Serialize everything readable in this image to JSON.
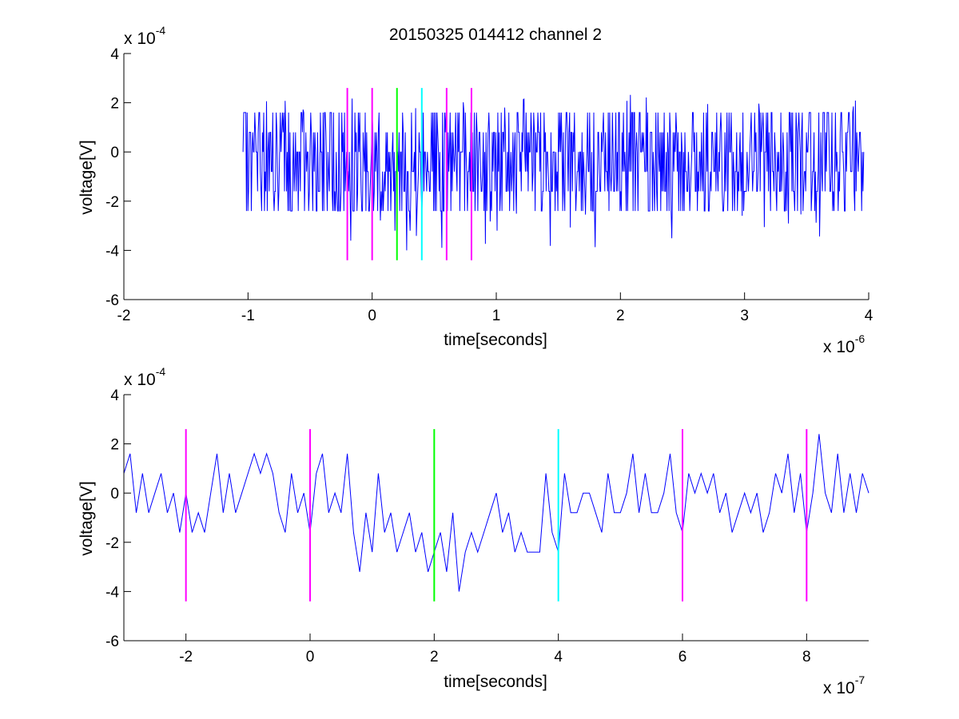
{
  "chart_data": [
    {
      "type": "line",
      "title": "20150325 014412 channel 2",
      "xlabel": "time[seconds]",
      "ylabel": "voltage[V]",
      "x_multiplier": {
        "base": "x 10",
        "exp": "-6"
      },
      "y_multiplier": {
        "base": "x 10",
        "exp": "-4"
      },
      "xlim": [
        -2,
        4
      ],
      "ylim": [
        -6,
        4
      ],
      "x_ticks": [
        -2,
        -1,
        0,
        1,
        2,
        3,
        4
      ],
      "x_tick_labels": [
        "-2",
        "-1",
        "0",
        "1",
        "2",
        "3",
        "4"
      ],
      "y_ticks": [
        -6,
        -4,
        -2,
        0,
        2,
        4
      ],
      "y_tick_labels": [
        "-6",
        "-4",
        "-2",
        "0",
        "2",
        "4"
      ],
      "grid": false,
      "series": [
        {
          "color": "#0000ff",
          "x_start": -1.04,
          "x_end": 3.96,
          "noise_levels": [
            -2.4,
            -1.6,
            -0.8,
            0,
            0.8,
            1.6
          ],
          "approx_range": [
            -4.0,
            2.4
          ]
        }
      ],
      "markers": [
        {
          "x": -0.2,
          "color": "#ff00ff",
          "y_range": [
            -4.4,
            2.6
          ]
        },
        {
          "x": 0.0,
          "color": "#ff00ff",
          "y_range": [
            -4.4,
            2.6
          ]
        },
        {
          "x": 0.2,
          "color": "#00ff00",
          "y_range": [
            -4.4,
            2.6
          ]
        },
        {
          "x": 0.4,
          "color": "#00ffff",
          "y_range": [
            -4.4,
            2.6
          ]
        },
        {
          "x": 0.6,
          "color": "#ff00ff",
          "y_range": [
            -4.4,
            2.6
          ]
        },
        {
          "x": 0.8,
          "color": "#ff00ff",
          "y_range": [
            -4.4,
            2.6
          ]
        }
      ]
    },
    {
      "type": "line",
      "title": "",
      "xlabel": "time[seconds]",
      "ylabel": "voltage[V]",
      "x_multiplier": {
        "base": "x 10",
        "exp": "-7"
      },
      "y_multiplier": {
        "base": "x 10",
        "exp": "-4"
      },
      "xlim": [
        -3,
        9
      ],
      "ylim": [
        -6,
        4
      ],
      "x_ticks": [
        -2,
        0,
        2,
        4,
        6,
        8
      ],
      "x_tick_labels": [
        "-2",
        "0",
        "2",
        "4",
        "6",
        "8"
      ],
      "y_ticks": [
        -6,
        -4,
        -2,
        0,
        2,
        4
      ],
      "y_tick_labels": [
        "-6",
        "-4",
        "-2",
        "0",
        "2",
        "4"
      ],
      "grid": false,
      "series": [
        {
          "color": "#0000ff",
          "x": [
            -3.0,
            -2.9,
            -2.8,
            -2.7,
            -2.6,
            -2.5,
            -2.4,
            -2.3,
            -2.2,
            -2.1,
            -2.0,
            -1.9,
            -1.8,
            -1.7,
            -1.6,
            -1.5,
            -1.4,
            -1.3,
            -1.2,
            -1.1,
            -1.0,
            -0.9,
            -0.8,
            -0.7,
            -0.6,
            -0.5,
            -0.4,
            -0.3,
            -0.2,
            -0.1,
            0.0,
            0.1,
            0.2,
            0.3,
            0.4,
            0.5,
            0.6,
            0.7,
            0.8,
            0.9,
            1.0,
            1.1,
            1.2,
            1.3,
            1.4,
            1.5,
            1.6,
            1.7,
            1.8,
            1.9,
            2.0,
            2.1,
            2.2,
            2.3,
            2.4,
            2.5,
            2.6,
            2.7,
            2.8,
            2.9,
            3.0,
            3.1,
            3.2,
            3.3,
            3.4,
            3.5,
            3.6,
            3.7,
            3.8,
            3.9,
            4.0,
            4.1,
            4.2,
            4.3,
            4.4,
            4.5,
            4.6,
            4.7,
            4.8,
            4.9,
            5.0,
            5.1,
            5.2,
            5.3,
            5.4,
            5.5,
            5.6,
            5.7,
            5.8,
            5.9,
            6.0,
            6.1,
            6.2,
            6.3,
            6.4,
            6.5,
            6.6,
            6.7,
            6.8,
            6.9,
            7.0,
            7.1,
            7.2,
            7.3,
            7.4,
            7.5,
            7.6,
            7.7,
            7.8,
            7.9,
            8.0,
            8.1,
            8.2,
            8.3,
            8.4,
            8.5,
            8.6,
            8.7,
            8.8,
            8.9,
            9.0
          ],
          "y": [
            0.8,
            1.6,
            -0.8,
            0.8,
            -0.8,
            0.0,
            0.8,
            -0.8,
            0.0,
            -1.6,
            0.0,
            -1.6,
            -0.8,
            -1.6,
            0.0,
            1.6,
            -0.8,
            0.8,
            -0.8,
            0.0,
            0.8,
            1.6,
            0.8,
            1.6,
            0.8,
            -0.8,
            -1.6,
            0.8,
            -0.8,
            0.0,
            -1.6,
            0.8,
            1.6,
            -0.8,
            0.0,
            -0.8,
            1.6,
            -1.6,
            -3.2,
            -0.8,
            -2.4,
            0.8,
            -1.6,
            -0.8,
            -2.4,
            -1.6,
            -0.8,
            -2.4,
            -1.6,
            -3.2,
            -2.4,
            -1.6,
            -3.2,
            -0.8,
            -4.0,
            -2.4,
            -1.6,
            -2.4,
            -1.6,
            -0.8,
            0.0,
            -1.6,
            -0.8,
            -2.4,
            -1.6,
            -2.4,
            -2.4,
            -2.4,
            0.8,
            -1.6,
            -2.4,
            0.8,
            -0.8,
            -0.8,
            0.0,
            0.0,
            -0.8,
            -1.6,
            0.8,
            -0.8,
            -0.8,
            0.0,
            1.6,
            -0.8,
            0.8,
            -0.8,
            -0.8,
            0.0,
            1.6,
            -0.8,
            -1.6,
            0.8,
            0.0,
            0.8,
            0.0,
            0.8,
            -0.8,
            0.0,
            -1.6,
            -0.8,
            0.0,
            -0.8,
            0.0,
            -1.6,
            -0.8,
            0.8,
            0.0,
            1.6,
            -0.8,
            0.8,
            -1.6,
            0.0,
            2.4,
            0.0,
            -0.8,
            1.6,
            -0.8,
            0.8,
            -0.8,
            0.8,
            0.0
          ]
        }
      ],
      "markers": [
        {
          "x": -2,
          "color": "#ff00ff",
          "y_range": [
            -4.4,
            2.6
          ]
        },
        {
          "x": 0,
          "color": "#ff00ff",
          "y_range": [
            -4.4,
            2.6
          ]
        },
        {
          "x": 2,
          "color": "#00ff00",
          "y_range": [
            -4.4,
            2.6
          ]
        },
        {
          "x": 4,
          "color": "#00ffff",
          "y_range": [
            -4.4,
            2.6
          ]
        },
        {
          "x": 6,
          "color": "#ff00ff",
          "y_range": [
            -4.4,
            2.6
          ]
        },
        {
          "x": 8,
          "color": "#ff00ff",
          "y_range": [
            -4.4,
            2.6
          ]
        }
      ]
    }
  ]
}
